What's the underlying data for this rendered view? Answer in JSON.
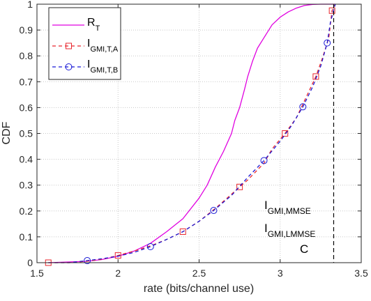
{
  "chart_data": {
    "type": "line",
    "xlabel": "rate (bits/channel use)",
    "ylabel": "CDF",
    "xlim": [
      1.5,
      3.5
    ],
    "ylim": [
      0,
      1
    ],
    "xticks": [
      "1.5",
      "2",
      "2.5",
      "3",
      "3.5"
    ],
    "yticks": [
      "0",
      "0.1",
      "0.2",
      "0.3",
      "0.4",
      "0.5",
      "0.6",
      "0.7",
      "0.8",
      "0.9",
      "1"
    ],
    "grid": "dotted",
    "legend_position": "top-left",
    "series": [
      {
        "name": "R",
        "name_sub": "T",
        "color": "#e000e0",
        "style": "solid",
        "marker": "none",
        "x": [
          1.57,
          1.8,
          1.9,
          2.0,
          2.1,
          2.2,
          2.3,
          2.4,
          2.5,
          2.55,
          2.6,
          2.65,
          2.7,
          2.72,
          2.75,
          2.78,
          2.8,
          2.83,
          2.86,
          2.9,
          2.95,
          3.0,
          3.05,
          3.1,
          3.15,
          3.2,
          3.25,
          3.3,
          3.34
        ],
        "y": [
          0.0,
          0.005,
          0.012,
          0.025,
          0.045,
          0.075,
          0.12,
          0.17,
          0.25,
          0.3,
          0.37,
          0.43,
          0.5,
          0.55,
          0.6,
          0.67,
          0.72,
          0.78,
          0.83,
          0.87,
          0.92,
          0.95,
          0.97,
          0.985,
          0.995,
          0.999,
          1.0,
          1.0,
          1.0
        ]
      },
      {
        "name": "I",
        "name_sub": "GMI,T,A",
        "color": "#e8262d",
        "style": "dashed",
        "marker": "square",
        "x": [
          1.57,
          1.7,
          1.8,
          1.9,
          2.0,
          2.1,
          2.2,
          2.3,
          2.4,
          2.5,
          2.6,
          2.7,
          2.75,
          2.8,
          2.9,
          2.95,
          3.03,
          3.1,
          3.16,
          3.22,
          3.26,
          3.3,
          3.32,
          3.34
        ],
        "y": [
          0.0,
          0.0,
          0.005,
          0.013,
          0.028,
          0.045,
          0.065,
          0.09,
          0.12,
          0.16,
          0.21,
          0.265,
          0.293,
          0.32,
          0.385,
          0.44,
          0.5,
          0.56,
          0.64,
          0.72,
          0.79,
          0.87,
          0.975,
          1.0
        ],
        "marker_x": [
          1.57,
          2.0,
          2.4,
          2.75,
          3.03,
          3.22,
          3.32
        ],
        "marker_y": [
          0.0,
          0.028,
          0.12,
          0.293,
          0.5,
          0.72,
          0.975
        ]
      },
      {
        "name": "I",
        "name_sub": "GMI,T,B",
        "color": "#1a1ad6",
        "style": "dashed",
        "marker": "circle",
        "x": [
          1.57,
          1.7,
          1.81,
          1.9,
          2.0,
          2.1,
          2.2,
          2.3,
          2.4,
          2.5,
          2.59,
          2.7,
          2.8,
          2.9,
          3.0,
          3.07,
          3.14,
          3.2,
          3.25,
          3.29,
          3.31,
          3.34
        ],
        "y": [
          0.0,
          0.0,
          0.008,
          0.015,
          0.025,
          0.04,
          0.062,
          0.09,
          0.12,
          0.16,
          0.202,
          0.26,
          0.33,
          0.395,
          0.47,
          0.53,
          0.603,
          0.68,
          0.76,
          0.85,
          0.93,
          1.0
        ],
        "marker_x": [
          1.81,
          2.2,
          2.59,
          2.9,
          3.14,
          3.29
        ],
        "marker_y": [
          0.008,
          0.062,
          0.202,
          0.395,
          0.603,
          0.85
        ]
      }
    ],
    "vline": {
      "x": 3.33,
      "color": "#000000",
      "style": "dashed"
    },
    "annotations": [
      {
        "main": "I",
        "sub": "GMI,MMSE"
      },
      {
        "main": "I",
        "sub": "GMI,LMMSE"
      },
      {
        "main": "C",
        "sub": ""
      }
    ]
  }
}
